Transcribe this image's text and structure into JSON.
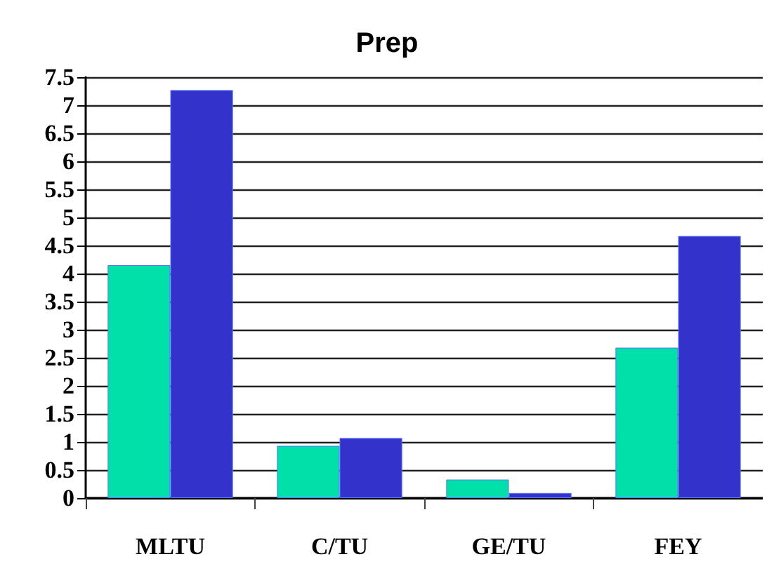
{
  "chart_data": {
    "type": "bar",
    "title": "Prep",
    "categories": [
      "MLTU",
      "C/TU",
      "GE/TU",
      "FEY"
    ],
    "series": [
      {
        "color": "#00e0a8",
        "values": [
          4.15,
          0.93,
          0.33,
          2.68
        ]
      },
      {
        "color": "#3333cc",
        "values": [
          7.27,
          1.07,
          0.09,
          4.67
        ]
      }
    ],
    "ylim": [
      0,
      7.5
    ],
    "yticks": [
      0,
      0.5,
      1,
      1.5,
      2,
      2.5,
      3,
      3.5,
      4,
      4.5,
      5,
      5.5,
      6,
      6.5,
      7,
      7.5
    ],
    "grid": "y"
  }
}
